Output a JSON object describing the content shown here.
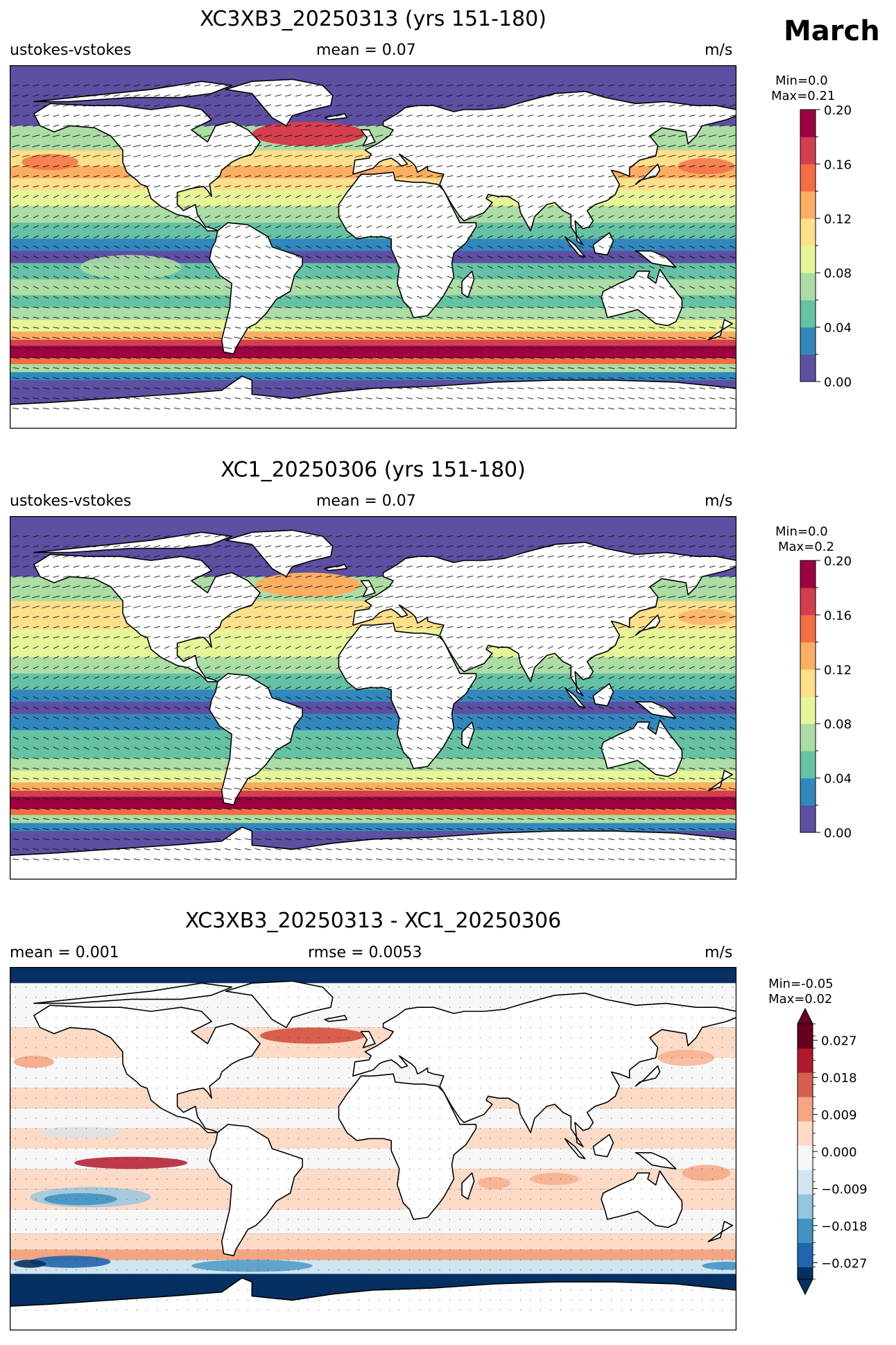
{
  "month": "March",
  "palettes": {
    "spectral": [
      "#5e4fa2",
      "#3288bd",
      "#66c2a5",
      "#abdda4",
      "#e6f598",
      "#fee08b",
      "#fdae61",
      "#f46d43",
      "#d53e4f",
      "#9e0142"
    ],
    "rdbu": [
      "#053061",
      "#2166ac",
      "#4393c3",
      "#92c5de",
      "#d1e5f0",
      "#f7f7f7",
      "#fddbc7",
      "#f4a582",
      "#d6604d",
      "#b2182b",
      "#67001f"
    ]
  },
  "chart_data": [
    {
      "type": "heatmap",
      "title": "XC3XB3_20250313 (yrs 151-180)",
      "left_label": "ustokes-vstokes",
      "center_label": "mean = 0.07",
      "units": "m/s",
      "colorbar": {
        "stats": [
          "Min=0.0",
          "Max=0.21"
        ],
        "ticks": [
          "0.00",
          "0.04",
          "0.08",
          "0.12",
          "0.16",
          "0.20"
        ],
        "range": [
          0,
          0.2
        ],
        "levels": 10,
        "extend": "none"
      }
    },
    {
      "type": "heatmap",
      "title": "XC1_20250306 (yrs 151-180)",
      "left_label": "ustokes-vstokes",
      "center_label": "mean = 0.07",
      "units": "m/s",
      "colorbar": {
        "stats": [
          "Min=0.0",
          "Max=0.2"
        ],
        "ticks": [
          "0.00",
          "0.04",
          "0.08",
          "0.12",
          "0.16",
          "0.20"
        ],
        "range": [
          0,
          0.2
        ],
        "levels": 10,
        "extend": "none"
      }
    },
    {
      "type": "heatmap",
      "title": "XC3XB3_20250313 - XC1_20250306",
      "left_label": "mean = 0.001",
      "center_label": "rmse = 0.0053",
      "units": "m/s",
      "colorbar": {
        "stats": [
          "Min=-0.05",
          "Max=0.02"
        ],
        "ticks": [
          "0.027",
          "0.018",
          "0.009",
          "0.000",
          "−0.009",
          "−0.018",
          "−0.027"
        ],
        "range": [
          -0.031,
          0.031
        ],
        "levels": 21,
        "extend": "both"
      }
    }
  ]
}
